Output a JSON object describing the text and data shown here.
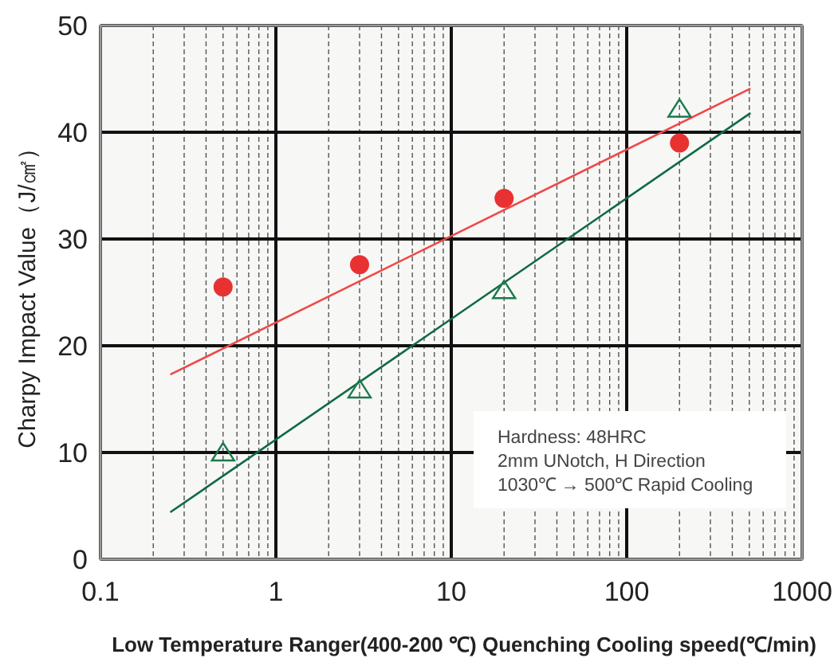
{
  "chart_data": {
    "type": "scatter",
    "xlabel": "Low Temperature Ranger(400-200 ℃) Quenching Cooling speed(℃/min)",
    "ylabel": "Charpy Impact Value（J/㎠）",
    "log": "x",
    "grid": true,
    "xlim": [
      0.1,
      1000
    ],
    "ylim": [
      0,
      50
    ],
    "yticks": [
      0,
      10,
      20,
      30,
      40,
      50
    ],
    "xticks": [
      0.1,
      {
        "value": 0.2,
        "label": null
      },
      {
        "value": 0.3,
        "label": null
      },
      {
        "value": 0.4,
        "label": null
      },
      {
        "value": 0.5,
        "label": null
      },
      {
        "value": 0.6,
        "label": null
      },
      {
        "value": 0.7,
        "label": null
      },
      {
        "value": 0.8,
        "label": null
      },
      {
        "value": 0.9,
        "label": null
      },
      1,
      {
        "value": 2,
        "label": null
      },
      {
        "value": 3,
        "label": null
      },
      {
        "value": 4,
        "label": null
      },
      {
        "value": 5,
        "label": null
      },
      {
        "value": 6,
        "label": null
      },
      {
        "value": 7,
        "label": null
      },
      {
        "value": 8,
        "label": null
      },
      {
        "value": 9,
        "label": null
      },
      10,
      {
        "value": 20,
        "label": null
      },
      {
        "value": 30,
        "label": null
      },
      {
        "value": 40,
        "label": null
      },
      {
        "value": 50,
        "label": null
      },
      {
        "value": 60,
        "label": null
      },
      {
        "value": 70,
        "label": null
      },
      {
        "value": 80,
        "label": null
      },
      {
        "value": 90,
        "label": null
      },
      100,
      {
        "value": 200,
        "label": null
      },
      {
        "value": 300,
        "label": null
      },
      {
        "value": 400,
        "label": null
      },
      {
        "value": 500,
        "label": null
      },
      {
        "value": 600,
        "label": null
      },
      {
        "value": 700,
        "label": null
      },
      {
        "value": 800,
        "label": null
      },
      {
        "value": 900,
        "label": null
      },
      1000
    ],
    "annotations": [
      "Hardness: 48HRC",
      "2mm UNotch, H Direction",
      "1030℃ → 500℃ Rapid Cooling"
    ],
    "series": [
      {
        "type": "line",
        "color": "#f04848",
        "x": [
          0.25,
          508
        ],
        "values": [
          17.3,
          44.1
        ]
      },
      {
        "type": "line",
        "color": "#0f6a45",
        "x": [
          0.25,
          508
        ],
        "values": [
          4.4,
          41.8
        ]
      },
      {
        "marker": "circle",
        "color": "#e83232",
        "x": [
          0.5,
          3,
          20,
          200
        ],
        "values": [
          25.5,
          27.6,
          33.8,
          39.0
        ]
      },
      {
        "marker": "triangle",
        "color": "#1a7a4a",
        "x": [
          0.5,
          3,
          20,
          200
        ],
        "values": [
          10.0,
          15.9,
          25.2,
          42.2
        ]
      }
    ]
  }
}
